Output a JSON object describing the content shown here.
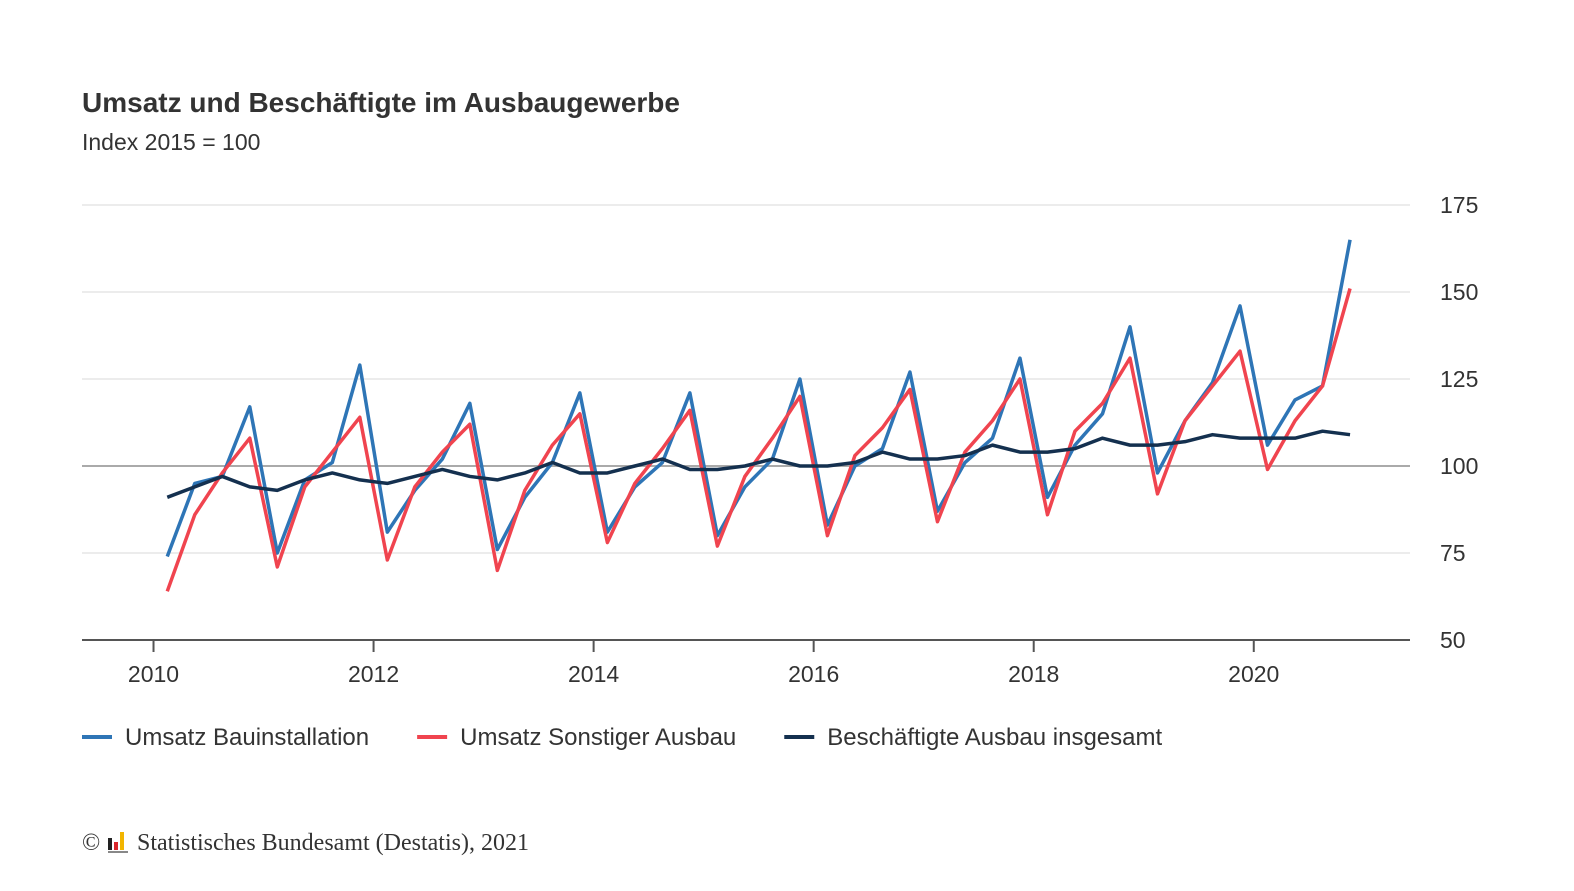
{
  "chart_data": {
    "type": "line",
    "title": "Umsatz und Beschäftigte im Ausbaugewerbe",
    "subtitle": "Index 2015 = 100",
    "x": [
      2010.125,
      2010.375,
      2010.625,
      2010.875,
      2011.125,
      2011.375,
      2011.625,
      2011.875,
      2012.125,
      2012.375,
      2012.625,
      2012.875,
      2013.125,
      2013.375,
      2013.625,
      2013.875,
      2014.125,
      2014.375,
      2014.625,
      2014.875,
      2015.125,
      2015.375,
      2015.625,
      2015.875,
      2016.125,
      2016.375,
      2016.625,
      2016.875,
      2017.125,
      2017.375,
      2017.625,
      2017.875,
      2018.125,
      2018.375,
      2018.625,
      2018.875,
      2019.125,
      2019.375,
      2019.625,
      2019.875,
      2020.125,
      2020.375,
      2020.625,
      2020.875
    ],
    "series": [
      {
        "name": "Umsatz Bauinstallation",
        "color": "#2e75b6",
        "values": [
          74,
          95,
          97,
          117,
          75,
          96,
          101,
          129,
          81,
          93,
          102,
          118,
          76,
          91,
          101,
          121,
          81,
          94,
          101,
          121,
          80,
          94,
          102,
          125,
          83,
          100,
          105,
          127,
          87,
          101,
          108,
          131,
          91,
          106,
          115,
          140,
          98,
          113,
          124,
          146,
          106,
          119,
          123,
          165
        ]
      },
      {
        "name": "Umsatz Sonstiger Ausbau",
        "color": "#f0444f",
        "values": [
          64,
          86,
          98,
          108,
          71,
          94,
          104,
          114,
          73,
          94,
          104,
          112,
          70,
          93,
          106,
          115,
          78,
          95,
          105,
          116,
          77,
          97,
          108,
          120,
          80,
          103,
          111,
          122,
          84,
          104,
          113,
          125,
          86,
          110,
          118,
          131,
          92,
          113,
          123,
          133,
          99,
          113,
          123,
          151
        ]
      },
      {
        "name": "Beschäftigte Ausbau insgesamt",
        "color": "#14304f",
        "values": [
          91,
          94,
          97,
          94,
          93,
          96,
          98,
          96,
          95,
          97,
          99,
          97,
          96,
          98,
          101,
          98,
          98,
          100,
          102,
          99,
          99,
          100,
          102,
          100,
          100,
          101,
          104,
          102,
          102,
          103,
          106,
          104,
          104,
          105,
          108,
          106,
          106,
          107,
          109,
          108,
          108,
          108,
          110,
          109
        ]
      }
    ],
    "xlim": [
      2009.35,
      2021.42
    ],
    "xticks": [
      2010,
      2012,
      2014,
      2016,
      2018,
      2020
    ],
    "ylim": [
      50,
      175
    ],
    "yticks": [
      50,
      75,
      100,
      125,
      150,
      175
    ],
    "reference_line": 100,
    "grid": true,
    "legend": "bottom",
    "copyright": "©",
    "source": "Statistisches Bundesamt (Destatis), 2021"
  }
}
